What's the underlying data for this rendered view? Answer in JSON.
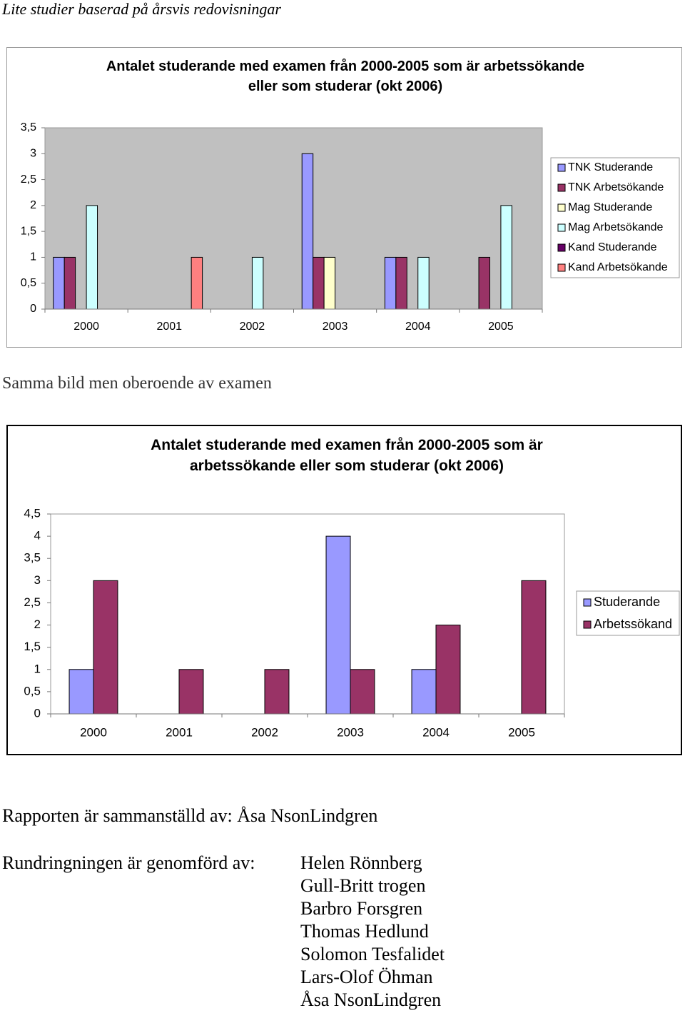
{
  "document": {
    "header": "Lite studier baserad på årsvis redovisningar",
    "section_heading": "Samma bild men oberoende av examen",
    "report_by": "Rapporten är sammanställd av: Åsa NsonLindgren",
    "survey_by_label": "Rundringningen är genomförd av:",
    "survey_by": [
      "Helen Rönnberg",
      "Gull-Britt trogen",
      "Barbro Forsgren",
      "Thomas Hedlund",
      "Solomon Tesfalidet",
      "Lars-Olof Öhman",
      "Åsa NsonLindgren"
    ]
  },
  "chart_data": [
    {
      "type": "bar",
      "title": "Antalet studerande med examen från 2000-2005 som är arbetssökande eller som studerar (okt 2006)",
      "categories": [
        "2000",
        "2001",
        "2002",
        "2003",
        "2004",
        "2005"
      ],
      "series": [
        {
          "name": "TNK Studerande",
          "color": "#9999ff",
          "values": [
            1,
            0,
            0,
            3,
            1,
            0
          ]
        },
        {
          "name": "TNK Arbetsökande",
          "color": "#993366",
          "values": [
            1,
            0,
            0,
            1,
            1,
            1
          ]
        },
        {
          "name": "Mag Studerande",
          "color": "#ffffcc",
          "values": [
            0,
            0,
            0,
            1,
            0,
            0
          ]
        },
        {
          "name": "Mag Arbetsökande",
          "color": "#ccffff",
          "values": [
            2,
            0,
            1,
            0,
            1,
            2
          ]
        },
        {
          "name": "Kand Studerande",
          "color": "#660066",
          "values": [
            0,
            0,
            0,
            0,
            0,
            0
          ]
        },
        {
          "name": "Kand Arbetsökande",
          "color": "#ff8080",
          "values": [
            0,
            1,
            0,
            0,
            0,
            0
          ]
        }
      ],
      "ylim": [
        0,
        3.5
      ],
      "yticks": [
        0,
        {
          "value": 0.5,
          "label": "0,5"
        },
        1,
        {
          "value": 1.5,
          "label": "1,5"
        },
        2,
        {
          "value": 2.5,
          "label": "2,5"
        },
        3,
        {
          "value": 3.5,
          "label": "3,5"
        }
      ],
      "grid": false,
      "legend": "right",
      "plot_color": "#c0c0c0"
    },
    {
      "type": "bar",
      "title": "Antalet studerande med examen från 2000-2005 som är arbetssökande eller som studerar (okt 2006)",
      "categories": [
        "2000",
        "2001",
        "2002",
        "2003",
        "2004",
        "2005"
      ],
      "series": [
        {
          "name": "Studerande",
          "color": "#9999ff",
          "values": [
            1,
            0,
            0,
            4,
            1,
            0
          ]
        },
        {
          "name": "Arbetssökand",
          "color": "#993366",
          "values": [
            3,
            1,
            1,
            1,
            2,
            3
          ]
        }
      ],
      "ylim": [
        0,
        4.5
      ],
      "yticks": [
        0,
        {
          "value": 0.5,
          "label": "0,5"
        },
        1,
        {
          "value": 1.5,
          "label": "1,5"
        },
        2,
        {
          "value": 2.5,
          "label": "2,5"
        },
        3,
        {
          "value": 3.5,
          "label": "3,5"
        },
        4,
        {
          "value": 4.5,
          "label": "4,5"
        }
      ],
      "grid": false,
      "legend": "right",
      "plot_color": "#ffffff"
    }
  ]
}
